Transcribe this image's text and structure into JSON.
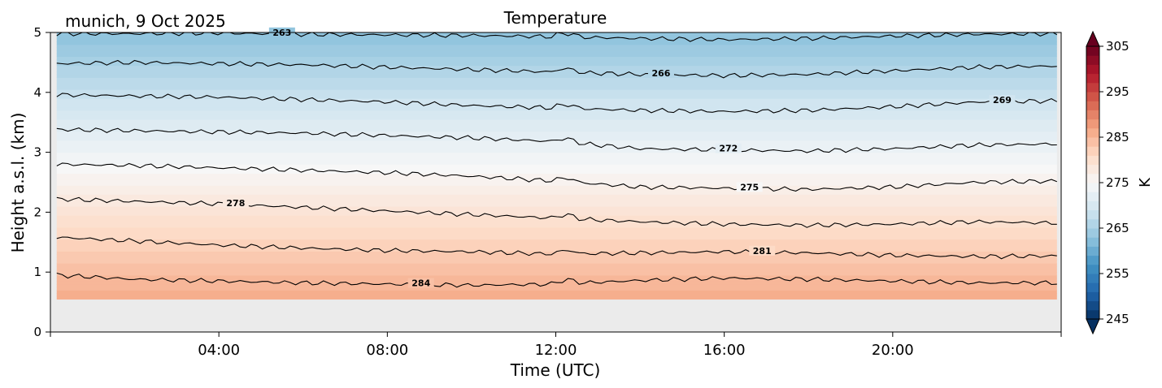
{
  "chart_data": {
    "type": "contourf",
    "title": "Temperature",
    "location_label": "munich, 9 Oct 2025",
    "xlabel": "Time (UTC)",
    "ylabel": "Height a.s.l. (km)",
    "xlim_hours": [
      0,
      24
    ],
    "ylim": [
      0,
      5
    ],
    "x_ticks": [
      {
        "hour": 4,
        "label": "04:00"
      },
      {
        "hour": 8,
        "label": "08:00"
      },
      {
        "hour": 12,
        "label": "12:00"
      },
      {
        "hour": 16,
        "label": "16:00"
      },
      {
        "hour": 20,
        "label": "20:00"
      }
    ],
    "y_ticks": [
      {
        "value": 0,
        "label": "0"
      },
      {
        "value": 1,
        "label": "1"
      },
      {
        "value": 2,
        "label": "2"
      },
      {
        "value": 3,
        "label": "3"
      },
      {
        "value": 4,
        "label": "4"
      },
      {
        "value": 5,
        "label": "5"
      }
    ],
    "data_height_range_km": [
      0.55,
      5.0
    ],
    "no_data_color": "#ebebeb",
    "contour_interval_K": 3,
    "temperature_profile": {
      "heights_km": [
        0.55,
        1.0,
        1.5,
        2.0,
        2.5,
        3.0,
        3.5,
        4.0,
        4.5,
        5.0
      ],
      "temperatures_K": [
        286.0,
        284.3,
        281.8,
        279.1,
        276.3,
        273.5,
        270.7,
        267.9,
        265.1,
        262.4
      ]
    },
    "contours": [
      {
        "level": 284,
        "label": "284",
        "label_hour": 8.8,
        "points": [
          [
            0.15,
            0.95
          ],
          [
            2,
            0.88
          ],
          [
            4,
            0.85
          ],
          [
            6,
            0.82
          ],
          [
            8,
            0.8
          ],
          [
            10,
            0.78
          ],
          [
            12,
            0.8
          ],
          [
            14,
            0.86
          ],
          [
            16,
            0.9
          ],
          [
            18,
            0.88
          ],
          [
            20,
            0.85
          ],
          [
            22,
            0.82
          ],
          [
            23.9,
            0.82
          ]
        ]
      },
      {
        "level": 281,
        "label": "281",
        "label_hour": 16.9,
        "points": [
          [
            0.15,
            1.58
          ],
          [
            2,
            1.52
          ],
          [
            4,
            1.45
          ],
          [
            6,
            1.4
          ],
          [
            8,
            1.36
          ],
          [
            10,
            1.34
          ],
          [
            12,
            1.3
          ],
          [
            14,
            1.32
          ],
          [
            16,
            1.34
          ],
          [
            18,
            1.32
          ],
          [
            20,
            1.28
          ],
          [
            22,
            1.26
          ],
          [
            23.9,
            1.27
          ]
        ]
      },
      {
        "level": 278,
        "label": "278",
        "label_hour": 4.4,
        "points": [
          [
            0.15,
            2.22
          ],
          [
            2,
            2.18
          ],
          [
            4,
            2.14
          ],
          [
            6,
            2.08
          ],
          [
            8,
            2.02
          ],
          [
            10,
            1.96
          ],
          [
            12,
            1.9
          ],
          [
            14,
            1.84
          ],
          [
            16,
            1.8
          ],
          [
            18,
            1.78
          ],
          [
            20,
            1.8
          ],
          [
            22,
            1.84
          ],
          [
            23.9,
            1.82
          ]
        ]
      },
      {
        "level": 275,
        "label": "275",
        "label_hour": 16.6,
        "points": [
          [
            0.15,
            2.8
          ],
          [
            2,
            2.78
          ],
          [
            4,
            2.74
          ],
          [
            6,
            2.7
          ],
          [
            8,
            2.66
          ],
          [
            10,
            2.6
          ],
          [
            12,
            2.52
          ],
          [
            14,
            2.42
          ],
          [
            16,
            2.4
          ],
          [
            18,
            2.38
          ],
          [
            20,
            2.42
          ],
          [
            22,
            2.5
          ],
          [
            23.9,
            2.52
          ]
        ]
      },
      {
        "level": 272,
        "label": "272",
        "label_hour": 16.1,
        "points": [
          [
            0.15,
            3.38
          ],
          [
            2,
            3.36
          ],
          [
            4,
            3.34
          ],
          [
            6,
            3.32
          ],
          [
            8,
            3.28
          ],
          [
            10,
            3.24
          ],
          [
            12,
            3.18
          ],
          [
            14,
            3.06
          ],
          [
            16,
            3.04
          ],
          [
            18,
            3.02
          ],
          [
            20,
            3.06
          ],
          [
            22,
            3.12
          ],
          [
            23.9,
            3.14
          ]
        ]
      },
      {
        "level": 269,
        "label": "269",
        "label_hour": 22.6,
        "points": [
          [
            0.15,
            3.96
          ],
          [
            2,
            3.94
          ],
          [
            4,
            3.92
          ],
          [
            6,
            3.88
          ],
          [
            8,
            3.84
          ],
          [
            10,
            3.78
          ],
          [
            12,
            3.74
          ],
          [
            14,
            3.7
          ],
          [
            16,
            3.68
          ],
          [
            18,
            3.7
          ],
          [
            20,
            3.76
          ],
          [
            22,
            3.84
          ],
          [
            23.9,
            3.86
          ]
        ]
      },
      {
        "level": 266,
        "label": "266",
        "label_hour": 14.5,
        "points": [
          [
            0.15,
            4.48
          ],
          [
            2,
            4.5
          ],
          [
            4,
            4.48
          ],
          [
            6,
            4.46
          ],
          [
            8,
            4.42
          ],
          [
            10,
            4.38
          ],
          [
            12,
            4.34
          ],
          [
            14,
            4.3
          ],
          [
            16,
            4.28
          ],
          [
            18,
            4.3
          ],
          [
            20,
            4.36
          ],
          [
            22,
            4.42
          ],
          [
            23.9,
            4.44
          ]
        ]
      },
      {
        "level": 263,
        "label": "263",
        "label_hour": 5.5,
        "points": [
          [
            0.15,
            4.98
          ],
          [
            2,
            4.98
          ],
          [
            4,
            4.99
          ],
          [
            6,
            4.97
          ],
          [
            8,
            4.96
          ],
          [
            10,
            4.95
          ],
          [
            12,
            4.93
          ],
          [
            14,
            4.9
          ],
          [
            16,
            4.88
          ],
          [
            18,
            4.9
          ],
          [
            20,
            4.94
          ],
          [
            22,
            4.97
          ],
          [
            23.9,
            4.98
          ]
        ]
      }
    ],
    "colorbar": {
      "label": "K",
      "min": 245,
      "max": 305,
      "extend": "both",
      "ticks": [
        {
          "value": 245,
          "label": "245"
        },
        {
          "value": 255,
          "label": "255"
        },
        {
          "value": 265,
          "label": "265"
        },
        {
          "value": 275,
          "label": "275"
        },
        {
          "value": 285,
          "label": "285"
        },
        {
          "value": 295,
          "label": "295"
        },
        {
          "value": 305,
          "label": "305"
        }
      ],
      "colormap": "RdBu_r",
      "colors": [
        "#053061",
        "#2166ac",
        "#4393c3",
        "#92c5de",
        "#d1e5f0",
        "#f7f7f7",
        "#fddbc7",
        "#f4a582",
        "#d6604d",
        "#b2182b",
        "#67001f"
      ]
    }
  }
}
